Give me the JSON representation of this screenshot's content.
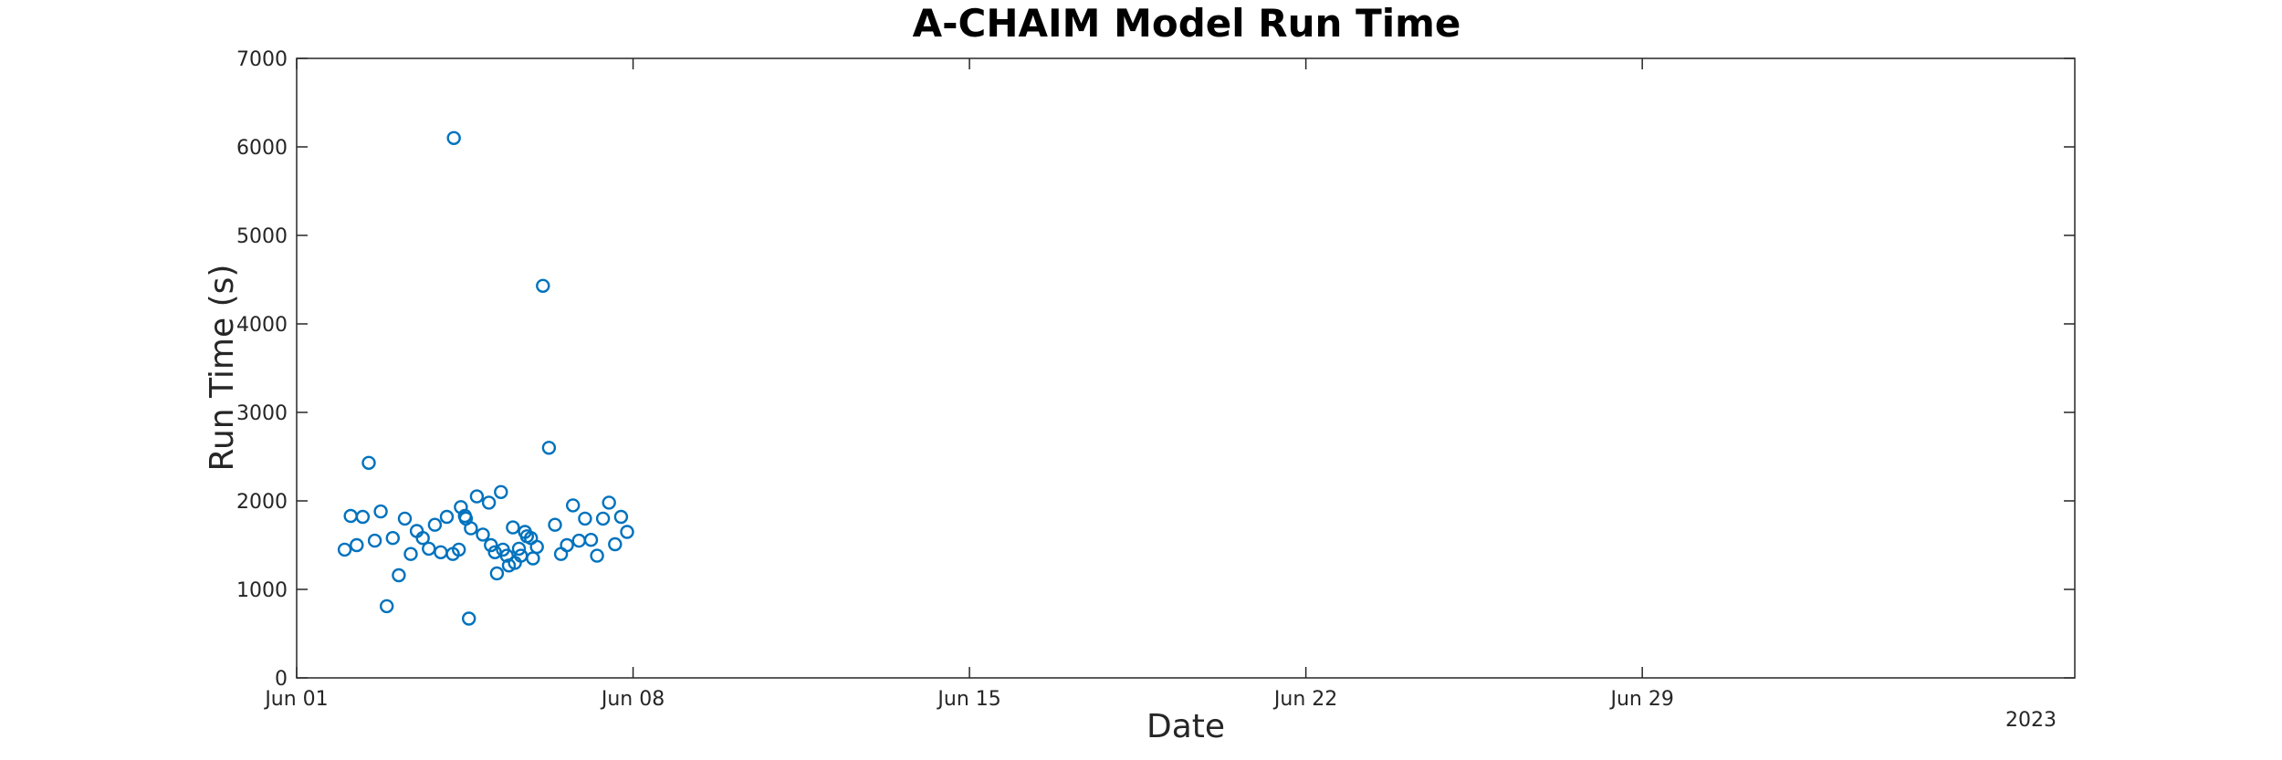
{
  "chart_data": {
    "type": "scatter",
    "title": "A-CHAIM Model Run Time",
    "xlabel": "Date",
    "ylabel": "Run Time (s)",
    "year_label": "2023",
    "xlim": [
      "2023-06-01",
      "2023-07-08"
    ],
    "ylim": [
      0,
      7000
    ],
    "xticks": [
      {
        "date": "2023-06-01",
        "label": "Jun 01"
      },
      {
        "date": "2023-06-08",
        "label": "Jun 08"
      },
      {
        "date": "2023-06-15",
        "label": "Jun 15"
      },
      {
        "date": "2023-06-22",
        "label": "Jun 22"
      },
      {
        "date": "2023-06-29",
        "label": "Jun 29"
      }
    ],
    "yticks": [
      0,
      1000,
      2000,
      3000,
      4000,
      5000,
      6000,
      7000
    ],
    "grid": false,
    "marker": "circle-open",
    "color": "#0072BD",
    "series": [
      {
        "points": [
          [
            "2023-06-02 00:00",
            1450
          ],
          [
            "2023-06-02 03:00",
            1830
          ],
          [
            "2023-06-02 06:00",
            1500
          ],
          [
            "2023-06-02 09:00",
            1820
          ],
          [
            "2023-06-02 12:00",
            2430
          ],
          [
            "2023-06-02 15:00",
            1550
          ],
          [
            "2023-06-02 18:00",
            1880
          ],
          [
            "2023-06-02 21:00",
            810
          ],
          [
            "2023-06-03 00:00",
            1580
          ],
          [
            "2023-06-03 03:00",
            1160
          ],
          [
            "2023-06-03 06:00",
            1800
          ],
          [
            "2023-06-03 09:00",
            1400
          ],
          [
            "2023-06-03 12:00",
            1660
          ],
          [
            "2023-06-03 15:00",
            1580
          ],
          [
            "2023-06-03 18:00",
            1460
          ],
          [
            "2023-06-03 21:00",
            1730
          ],
          [
            "2023-06-04 00:00",
            1420
          ],
          [
            "2023-06-04 03:00",
            1820
          ],
          [
            "2023-06-04 06:00",
            1400
          ],
          [
            "2023-06-04 09:00",
            1450
          ],
          [
            "2023-06-04 12:00",
            1830
          ],
          [
            "2023-06-04 15:00",
            1690
          ],
          [
            "2023-06-04 18:00",
            2050
          ],
          [
            "2023-06-04 21:00",
            1620
          ],
          [
            "2023-06-05 00:00",
            1980
          ],
          [
            "2023-06-05 03:00",
            1420
          ],
          [
            "2023-06-05 06:00",
            2100
          ],
          [
            "2023-06-05 09:00",
            1380
          ],
          [
            "2023-06-05 12:00",
            1700
          ],
          [
            "2023-06-05 15:00",
            1460
          ],
          [
            "2023-06-05 18:00",
            1650
          ],
          [
            "2023-06-05 21:00",
            1580
          ],
          [
            "2023-06-06 00:00",
            1480
          ],
          [
            "2023-06-06 03:00",
            4430
          ],
          [
            "2023-06-06 06:00",
            2600
          ],
          [
            "2023-06-06 09:00",
            1730
          ],
          [
            "2023-06-06 12:00",
            1400
          ],
          [
            "2023-06-06 15:00",
            1500
          ],
          [
            "2023-06-06 18:00",
            1950
          ],
          [
            "2023-06-06 21:00",
            1550
          ],
          [
            "2023-06-07 00:00",
            1800
          ],
          [
            "2023-06-07 03:00",
            1560
          ],
          [
            "2023-06-07 06:00",
            1380
          ],
          [
            "2023-06-07 09:00",
            1800
          ],
          [
            "2023-06-07 12:00",
            1980
          ],
          [
            "2023-06-07 15:00",
            1510
          ],
          [
            "2023-06-07 18:00",
            1820
          ],
          [
            "2023-06-07 21:00",
            1650
          ],
          [
            "2023-06-04 06:30",
            6100
          ],
          [
            "2023-06-04 10:00",
            1930
          ],
          [
            "2023-06-04 12:30",
            1800
          ],
          [
            "2023-06-04 14:00",
            670
          ],
          [
            "2023-06-05 01:00",
            1500
          ],
          [
            "2023-06-05 04:00",
            1180
          ],
          [
            "2023-06-05 07:00",
            1450
          ],
          [
            "2023-06-05 10:00",
            1270
          ],
          [
            "2023-06-05 13:00",
            1300
          ],
          [
            "2023-06-05 16:00",
            1380
          ],
          [
            "2023-06-05 19:00",
            1600
          ],
          [
            "2023-06-05 22:00",
            1350
          ]
        ]
      }
    ]
  }
}
